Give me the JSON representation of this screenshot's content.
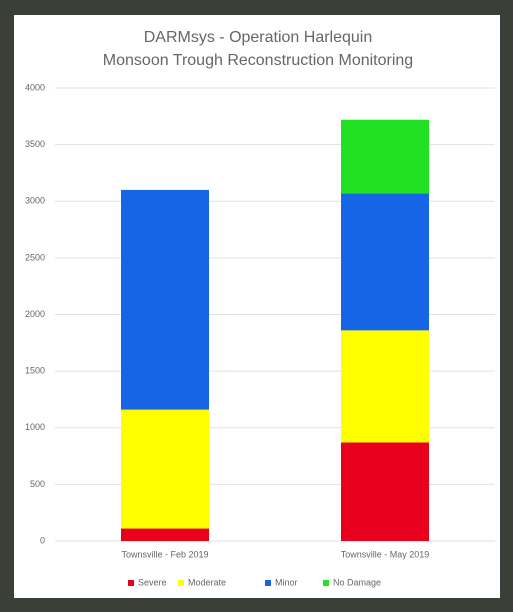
{
  "chart_data": {
    "type": "stacked_bar",
    "title": "DARMsys - Operation Harlequin",
    "subtitle": "Monsoon Trough Reconstruction Monitoring",
    "categories": [
      "Townsville - Feb 2019",
      "Townsville - May 2019"
    ],
    "series": [
      {
        "name": "Severe",
        "color": "#e8001c",
        "values": [
          110,
          870
        ]
      },
      {
        "name": "Moderate",
        "color": "#ffff00",
        "values": [
          1050,
          990
        ]
      },
      {
        "name": "Minor",
        "color": "#1565e6",
        "values": [
          1940,
          1210
        ]
      },
      {
        "name": "No Damage",
        "color": "#22e022",
        "values": [
          0,
          650
        ]
      }
    ],
    "ylim": [
      0,
      4000
    ],
    "yticks": [
      0,
      500,
      1000,
      1500,
      2000,
      2500,
      3000,
      3500,
      4000
    ],
    "grid": true,
    "legend": "bottom"
  }
}
